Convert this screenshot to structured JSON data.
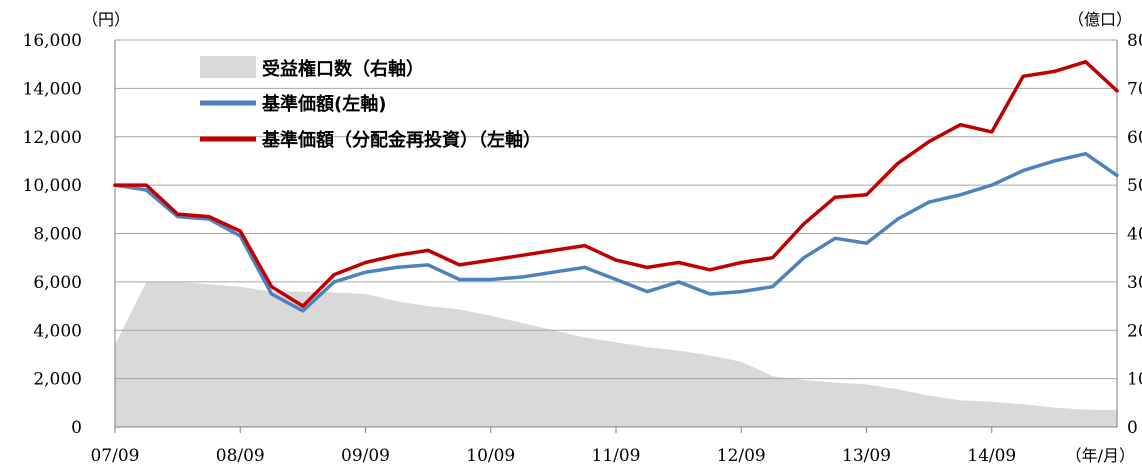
{
  "chart_data": {
    "type": "line",
    "title": "",
    "left_axis": {
      "unit": "（円）",
      "ylim": [
        0,
        16000
      ],
      "ticks": [
        "0",
        "2,000",
        "4,000",
        "6,000",
        "8,000",
        "10,000",
        "12,000",
        "14,000",
        "16,000"
      ]
    },
    "right_axis": {
      "unit": "（億口）",
      "ylim": [
        0,
        80
      ],
      "ticks": [
        "0",
        "10",
        "20",
        "30",
        "40",
        "50",
        "60",
        "70",
        "80"
      ]
    },
    "x_axis": {
      "unit": "（年/月）",
      "tick_labels": [
        "07/09",
        "08/09",
        "09/09",
        "10/09",
        "11/09",
        "12/09",
        "13/09",
        "14/09"
      ]
    },
    "grid": true,
    "legend_position": "top-left",
    "x": [
      "07/09",
      "07/12",
      "08/03",
      "08/06",
      "08/09",
      "08/12",
      "09/03",
      "09/06",
      "09/09",
      "09/12",
      "10/03",
      "10/06",
      "10/09",
      "10/12",
      "11/03",
      "11/06",
      "11/09",
      "11/12",
      "12/03",
      "12/06",
      "12/09",
      "12/12",
      "13/03",
      "13/06",
      "13/09",
      "13/12",
      "14/03",
      "14/06",
      "14/09",
      "14/12",
      "15/03",
      "15/06",
      "15/08"
    ],
    "series": [
      {
        "name": "受益権口数（右軸）",
        "axis": "right",
        "kind": "area",
        "color": "#d9d9d9",
        "values": [
          17,
          30,
          30,
          29.5,
          29,
          28,
          28,
          27.8,
          27.5,
          26,
          25,
          24.3,
          23,
          21.5,
          20,
          18.5,
          17.5,
          16.5,
          15.8,
          14.8,
          13.5,
          10.5,
          9.7,
          9.2,
          8.8,
          7.8,
          6.5,
          5.5,
          5.2,
          4.7,
          4.0,
          3.6,
          3.5
        ]
      },
      {
        "name": "基準価額(左軸)",
        "axis": "left",
        "kind": "line",
        "color": "#4f81bd",
        "values": [
          10000,
          9800,
          8700,
          8600,
          7900,
          5500,
          4800,
          6000,
          6400,
          6600,
          6700,
          6100,
          6100,
          6200,
          6400,
          6600,
          6100,
          5600,
          6000,
          5500,
          5600,
          5800,
          7000,
          7800,
          7600,
          8600,
          9300,
          9600,
          10000,
          10600,
          11000,
          11300,
          10400
        ]
      },
      {
        "name": "基準価額（分配金再投資）（左軸）",
        "axis": "left",
        "kind": "line",
        "color": "#c00000",
        "values": [
          10000,
          10000,
          8800,
          8700,
          8100,
          5800,
          5000,
          6300,
          6800,
          7100,
          7300,
          6700,
          6900,
          7100,
          7300,
          7500,
          6900,
          6600,
          6800,
          6500,
          6800,
          7000,
          8400,
          9500,
          9600,
          10900,
          11800,
          12500,
          12200,
          14500,
          14700,
          15100,
          13900
        ]
      }
    ]
  }
}
